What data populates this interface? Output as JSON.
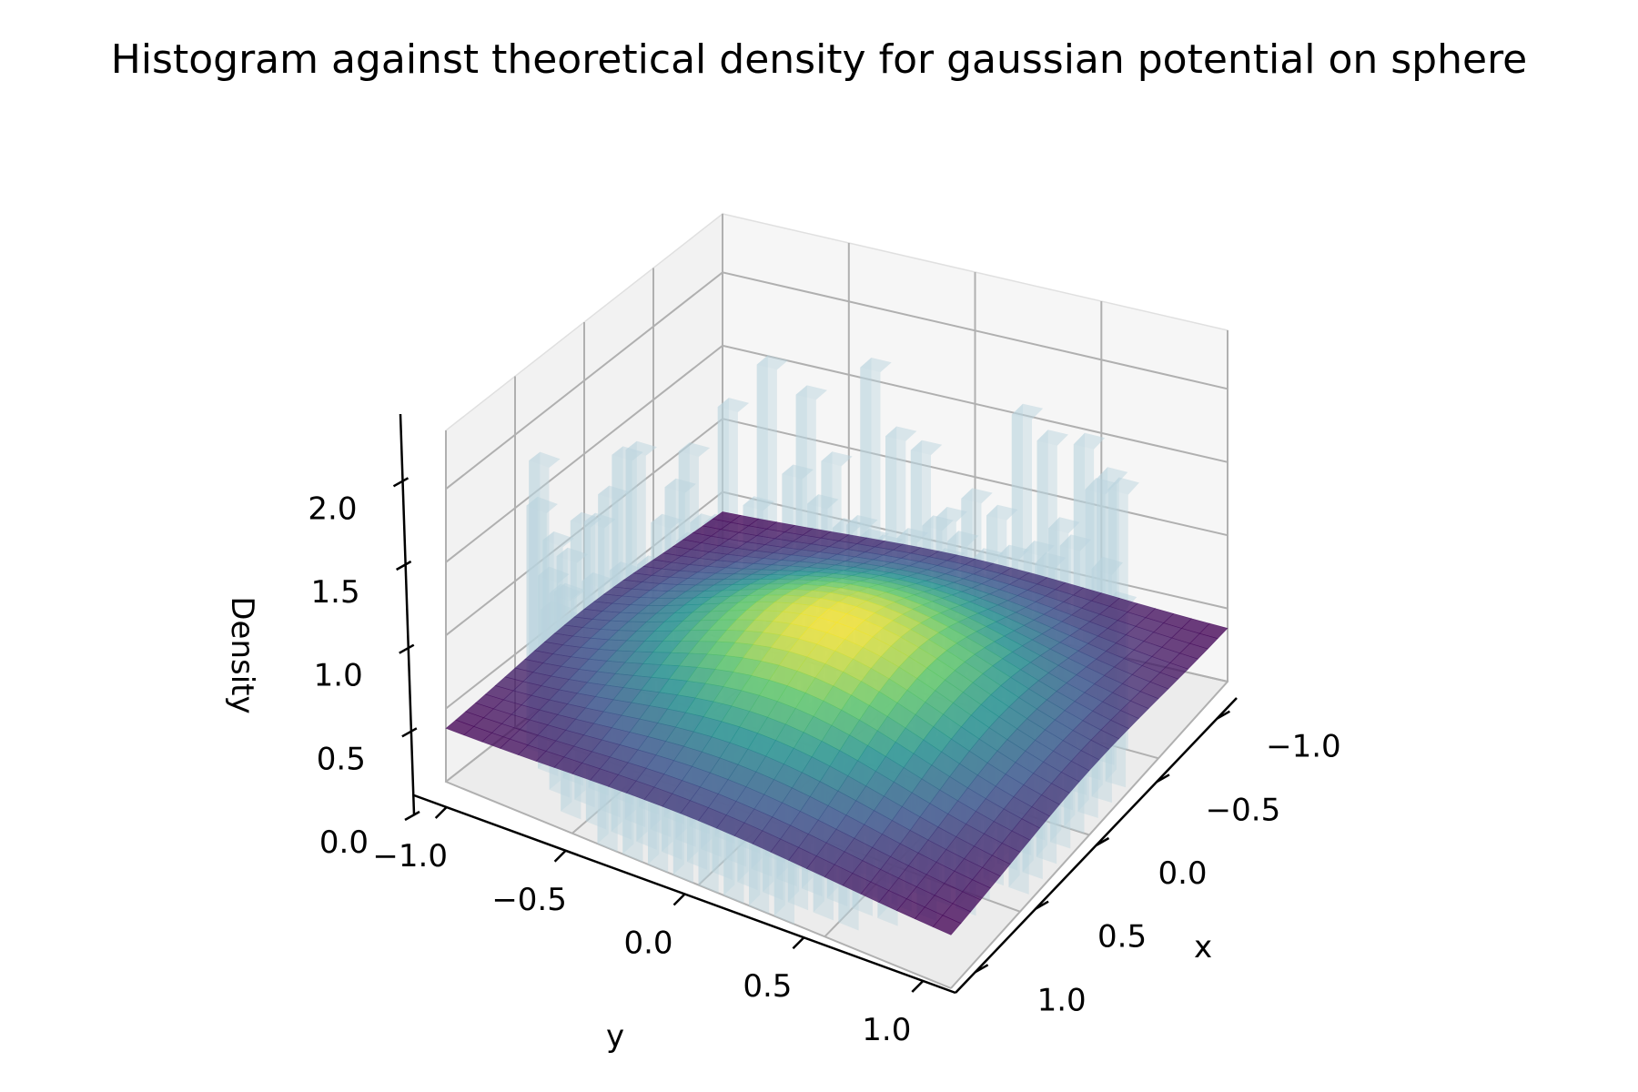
{
  "chart_data": {
    "type": "3d-bar-surface",
    "title": "Histogram against theoretical density for gaussian potential on sphere",
    "xlabel": "x",
    "ylabel": "y",
    "zlabel": "Density",
    "xlim": [
      -1.0,
      1.0
    ],
    "ylim": [
      -1.0,
      1.0
    ],
    "zlim": [
      0.0,
      2.4
    ],
    "x_ticks": [
      "−1.0",
      "−0.5",
      "0.0",
      "0.5",
      "1.0"
    ],
    "y_ticks": [
      "−1.0",
      "−0.5",
      "0.0",
      "0.5",
      "1.0"
    ],
    "z_ticks": [
      "0.0",
      "0.5",
      "1.0",
      "1.5",
      "2.0"
    ],
    "x_tick_values": [
      -1.0,
      -0.5,
      0.0,
      0.5,
      1.0
    ],
    "y_tick_values": [
      -1.0,
      -0.5,
      0.0,
      0.5,
      1.0
    ],
    "z_tick_values": [
      0.0,
      0.5,
      1.0,
      1.5,
      2.0
    ],
    "grid": true,
    "surface_colormap": "viridis",
    "surface_peak": 0.9,
    "surface_edge": 0.35,
    "bar_color": "#b9d3de",
    "histogram_bins": 20,
    "histogram_peak": 2.25
  }
}
